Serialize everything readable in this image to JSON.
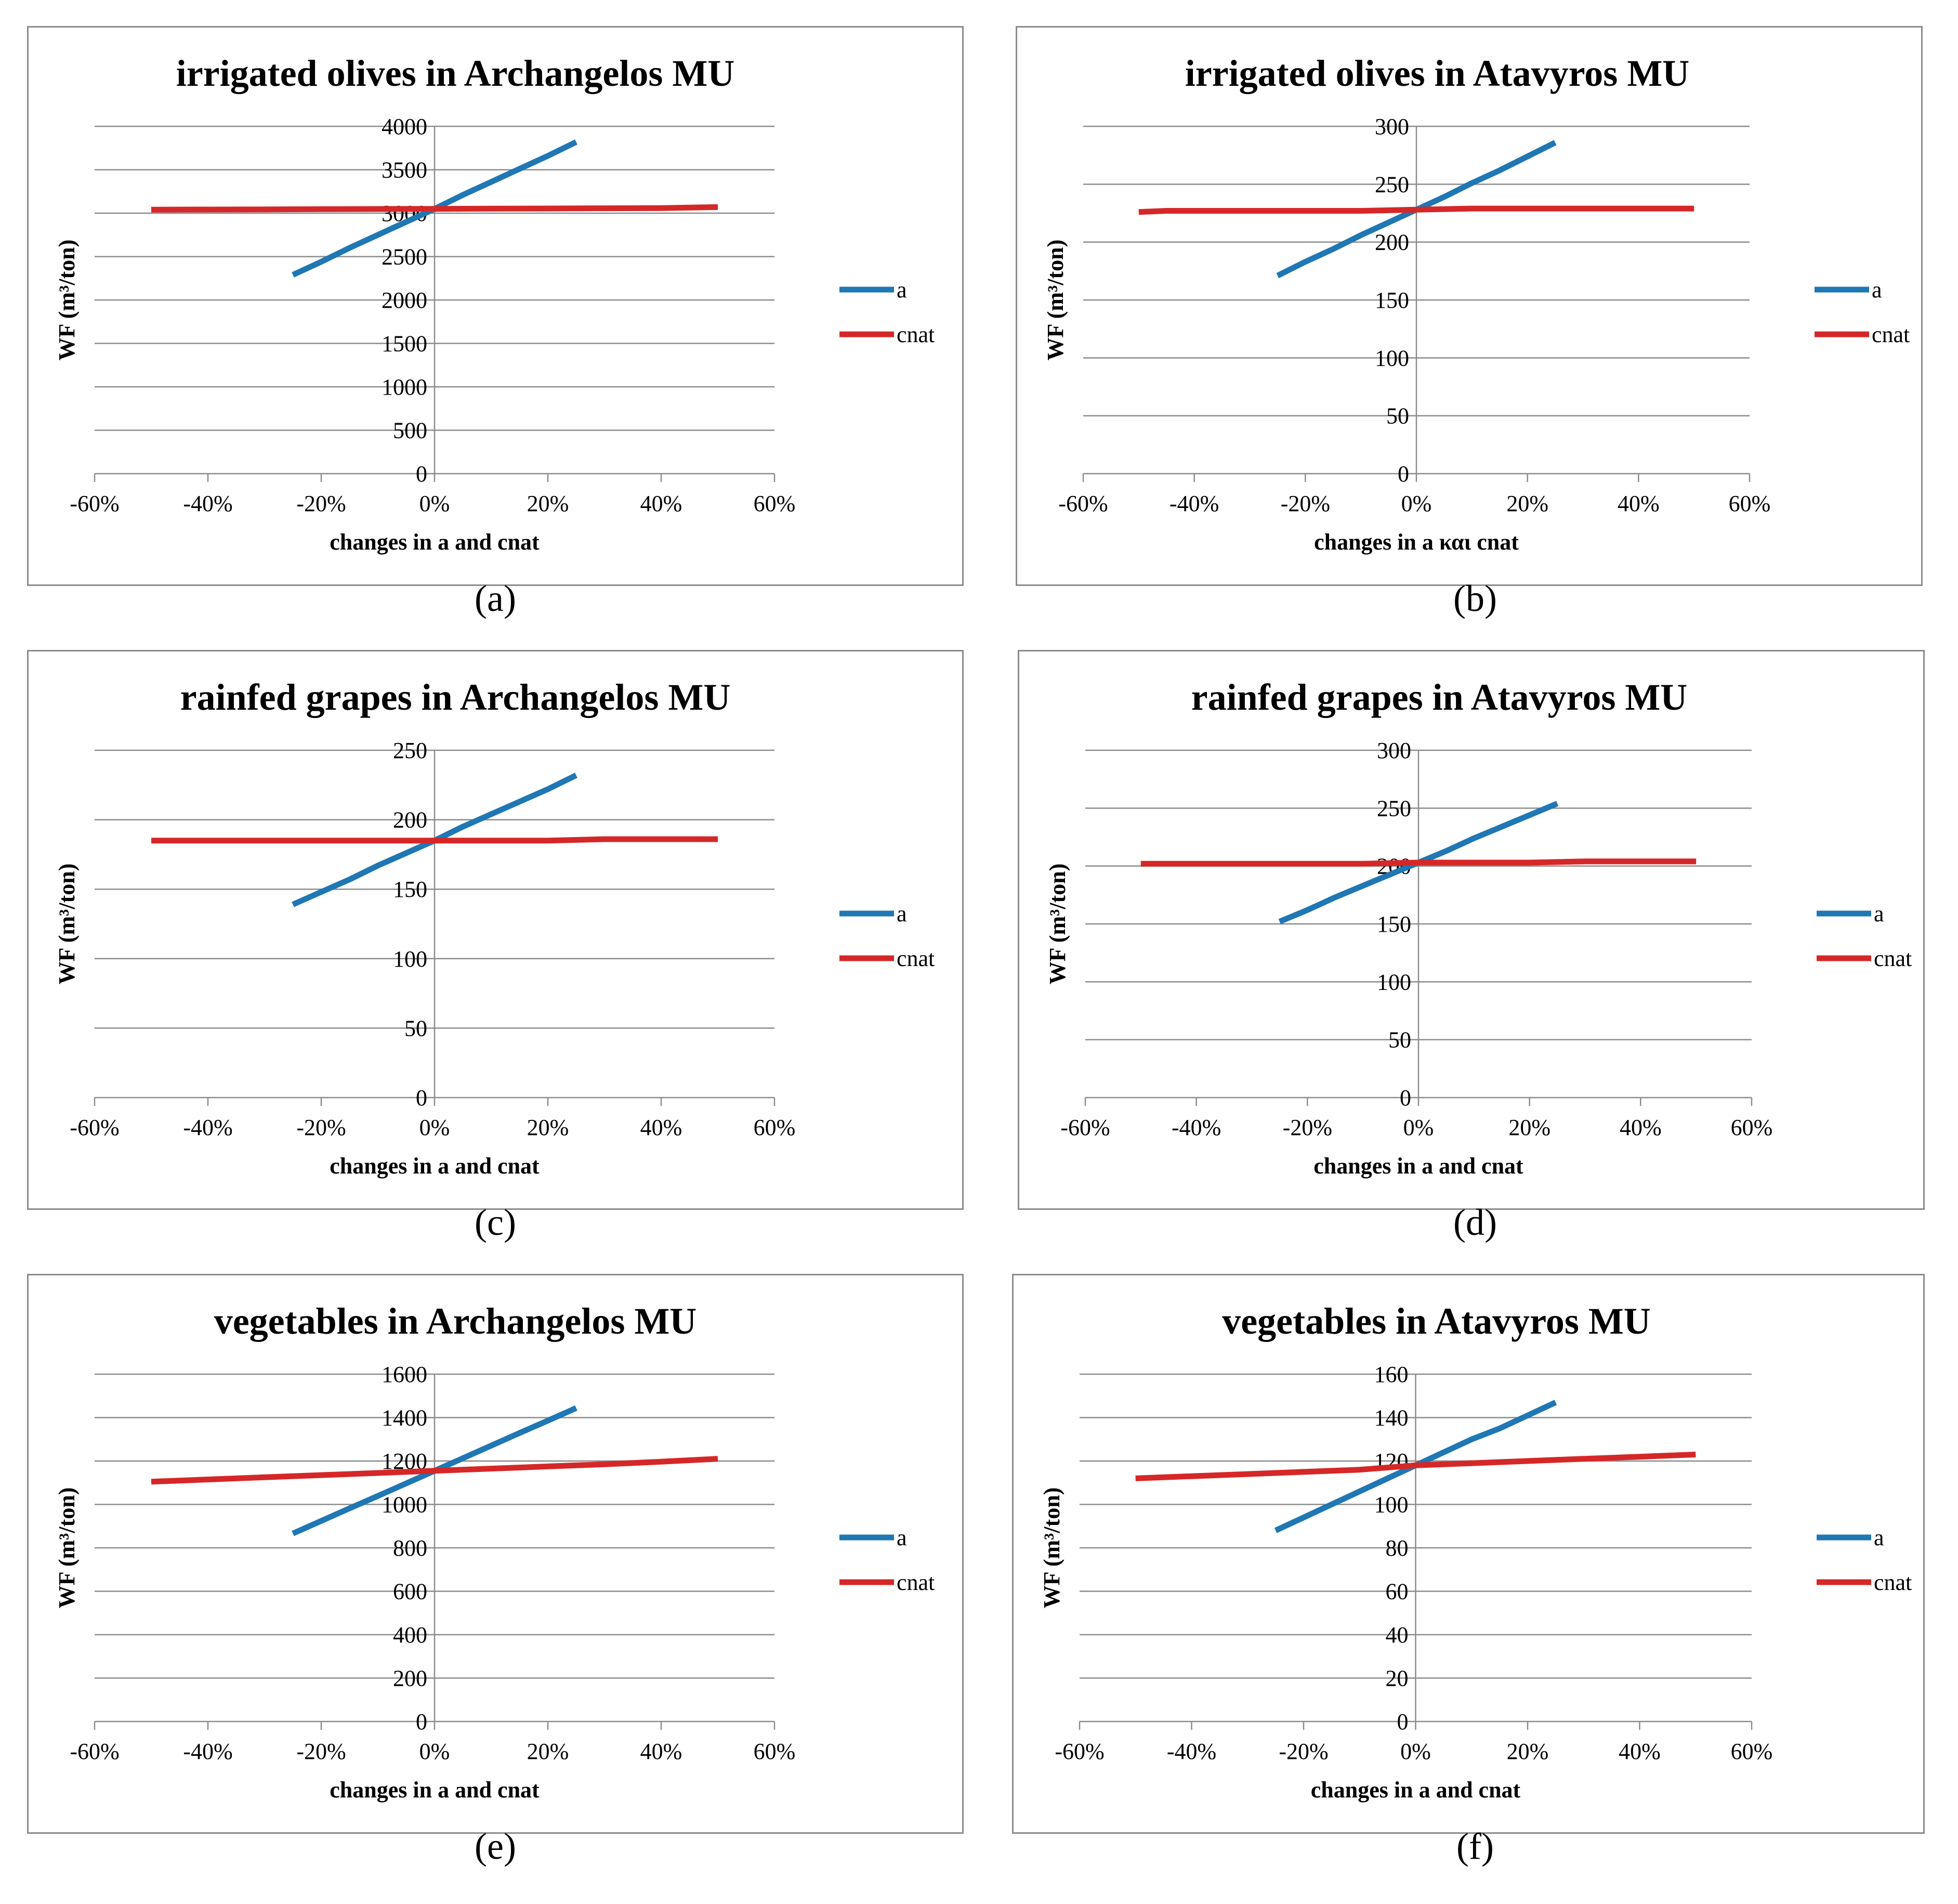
{
  "chart_data": [
    {
      "type": "line",
      "panel_label": "(a)",
      "title": "irrigated olives in Archangelos  MU",
      "xlabel": "changes in a and cnat",
      "ylabel": "WF (m³/ton)",
      "xlim": [
        -0.6,
        0.6
      ],
      "ylim": [
        0,
        4000
      ],
      "x_ticks": [
        "-60%",
        "-40%",
        "-20%",
        "0%",
        "20%",
        "40%",
        "60%"
      ],
      "y_ticks": [
        "0",
        "500",
        "1000",
        "1500",
        "2000",
        "2500",
        "3000",
        "3500",
        "4000"
      ],
      "legend": "right",
      "series": [
        {
          "name": "a",
          "color": "#1f77b4",
          "x": [
            -0.25,
            -0.2,
            -0.15,
            -0.1,
            -0.05,
            0,
            0.05,
            0.1,
            0.15,
            0.2,
            0.25
          ],
          "y": [
            2290,
            2440,
            2600,
            2750,
            2900,
            3050,
            3210,
            3360,
            3510,
            3660,
            3820
          ]
        },
        {
          "name": "cnat",
          "color": "#d62728",
          "x": [
            -0.5,
            -0.4,
            -0.3,
            -0.2,
            -0.1,
            0,
            0.1,
            0.2,
            0.3,
            0.4,
            0.5
          ],
          "y": [
            3040,
            3042,
            3044,
            3046,
            3048,
            3050,
            3052,
            3054,
            3056,
            3058,
            3070
          ]
        }
      ]
    },
    {
      "type": "line",
      "panel_label": "(b)",
      "title": "irrigated olives in Atavyros  MU",
      "xlabel": "changes in a και cnat",
      "ylabel": "WF (m³/ton)",
      "xlim": [
        -0.6,
        0.6
      ],
      "ylim": [
        0,
        300
      ],
      "x_ticks": [
        "-60%",
        "-40%",
        "-20%",
        "0%",
        "20%",
        "40%",
        "60%"
      ],
      "y_ticks": [
        "0",
        "50",
        "100",
        "150",
        "200",
        "250",
        "300"
      ],
      "legend": "right",
      "series": [
        {
          "name": "a",
          "color": "#1f77b4",
          "x": [
            -0.25,
            -0.2,
            -0.15,
            -0.1,
            -0.05,
            0,
            0.05,
            0.1,
            0.15,
            0.2,
            0.25
          ],
          "y": [
            171,
            183,
            194,
            206,
            217,
            228,
            239,
            251,
            262,
            274,
            286
          ]
        },
        {
          "name": "cnat",
          "color": "#d62728",
          "x": [
            -0.5,
            -0.45,
            -0.4,
            -0.3,
            -0.2,
            -0.1,
            0,
            0.1,
            0.2,
            0.3,
            0.4,
            0.5
          ],
          "y": [
            226,
            227,
            227,
            227,
            227,
            227,
            228,
            229,
            229,
            229,
            229,
            229
          ]
        }
      ]
    },
    {
      "type": "line",
      "panel_label": "(c)",
      "title": "rainfed grapes  in Archangelos MU",
      "xlabel": "changes in a and cnat",
      "ylabel": "WF (m³/ton)",
      "xlim": [
        -0.6,
        0.6
      ],
      "ylim": [
        0,
        250
      ],
      "x_ticks": [
        "-60%",
        "-40%",
        "-20%",
        "0%",
        "20%",
        "40%",
        "60%"
      ],
      "y_ticks": [
        "0",
        "50",
        "100",
        "150",
        "200",
        "250"
      ],
      "legend": "right",
      "series": [
        {
          "name": "a",
          "color": "#1f77b4",
          "x": [
            -0.25,
            -0.2,
            -0.15,
            -0.1,
            -0.05,
            0,
            0.05,
            0.1,
            0.15,
            0.2,
            0.25
          ],
          "y": [
            139,
            148,
            157,
            167,
            176,
            185,
            195,
            204,
            213,
            222,
            232
          ]
        },
        {
          "name": "cnat",
          "color": "#d62728",
          "x": [
            -0.5,
            -0.4,
            -0.3,
            -0.2,
            -0.1,
            0,
            0.1,
            0.2,
            0.3,
            0.4,
            0.5
          ],
          "y": [
            185,
            185,
            185,
            185,
            185,
            185,
            185,
            185,
            186,
            186,
            186
          ]
        }
      ]
    },
    {
      "type": "line",
      "panel_label": "(d)",
      "title": "rainfed grapes in Atavyros MU",
      "xlabel": "changes in a and cnat",
      "ylabel": "WF (m³/ton)",
      "xlim": [
        -0.6,
        0.6
      ],
      "ylim": [
        0,
        300
      ],
      "x_ticks": [
        "-60%",
        "-40%",
        "-20%",
        "0%",
        "20%",
        "40%",
        "60%"
      ],
      "y_ticks": [
        "0",
        "50",
        "100",
        "150",
        "200",
        "250",
        "300"
      ],
      "legend": "right",
      "series": [
        {
          "name": "a",
          "color": "#1f77b4",
          "x": [
            -0.25,
            -0.2,
            -0.15,
            -0.1,
            -0.05,
            0,
            0.05,
            0.1,
            0.15,
            0.2,
            0.25
          ],
          "y": [
            152,
            162,
            173,
            183,
            193,
            203,
            213,
            224,
            234,
            244,
            254
          ]
        },
        {
          "name": "cnat",
          "color": "#d62728",
          "x": [
            -0.5,
            -0.4,
            -0.3,
            -0.2,
            -0.1,
            0,
            0.1,
            0.2,
            0.3,
            0.4,
            0.5
          ],
          "y": [
            202,
            202,
            202,
            202,
            202,
            203,
            203,
            203,
            204,
            204,
            204
          ]
        }
      ]
    },
    {
      "type": "line",
      "panel_label": "(e)",
      "title": "vegetables  in Archangelos MU",
      "xlabel": "changes in a and cnat",
      "ylabel": "WF (m³/ton)",
      "xlim": [
        -0.6,
        0.6
      ],
      "ylim": [
        0,
        1600
      ],
      "x_ticks": [
        "-60%",
        "-40%",
        "-20%",
        "0%",
        "20%",
        "40%",
        "60%"
      ],
      "y_ticks": [
        "0",
        "200",
        "400",
        "600",
        "800",
        "1000",
        "1200",
        "1400",
        "1600"
      ],
      "legend": "right",
      "series": [
        {
          "name": "a",
          "color": "#1f77b4",
          "x": [
            -0.25,
            -0.2,
            -0.15,
            -0.1,
            -0.05,
            0,
            0.05,
            0.1,
            0.15,
            0.2,
            0.25
          ],
          "y": [
            866,
            924,
            982,
            1039,
            1097,
            1155,
            1213,
            1271,
            1329,
            1386,
            1444
          ]
        },
        {
          "name": "cnat",
          "color": "#d62728",
          "x": [
            -0.5,
            -0.4,
            -0.3,
            -0.2,
            -0.1,
            0,
            0.1,
            0.2,
            0.3,
            0.4,
            0.5
          ],
          "y": [
            1105,
            1115,
            1125,
            1135,
            1145,
            1155,
            1165,
            1175,
            1185,
            1197,
            1210
          ]
        }
      ]
    },
    {
      "type": "line",
      "panel_label": "(f)",
      "title": "vegetables in Atavyros MU",
      "xlabel": "changes in   a and cnat",
      "ylabel": "WF (m³/ton)",
      "xlim": [
        -0.6,
        0.6
      ],
      "ylim": [
        0,
        160
      ],
      "x_ticks": [
        "-60%",
        "-40%",
        "-20%",
        "0%",
        "20%",
        "40%",
        "60%"
      ],
      "y_ticks": [
        "0",
        "20",
        "40",
        "60",
        "80",
        "100",
        "120",
        "140",
        "160"
      ],
      "legend": "right",
      "series": [
        {
          "name": "a",
          "color": "#1f77b4",
          "x": [
            -0.25,
            -0.2,
            -0.15,
            -0.1,
            -0.05,
            0,
            0.05,
            0.1,
            0.15,
            0.2,
            0.25
          ],
          "y": [
            88,
            94,
            100,
            106,
            112,
            118,
            124,
            130,
            135,
            141,
            147
          ]
        },
        {
          "name": "cnat",
          "color": "#d62728",
          "x": [
            -0.5,
            -0.4,
            -0.3,
            -0.2,
            -0.1,
            0,
            0.1,
            0.2,
            0.3,
            0.4,
            0.5
          ],
          "y": [
            112,
            113,
            114,
            115,
            116,
            118,
            119,
            120,
            121,
            122,
            123
          ]
        }
      ]
    }
  ]
}
